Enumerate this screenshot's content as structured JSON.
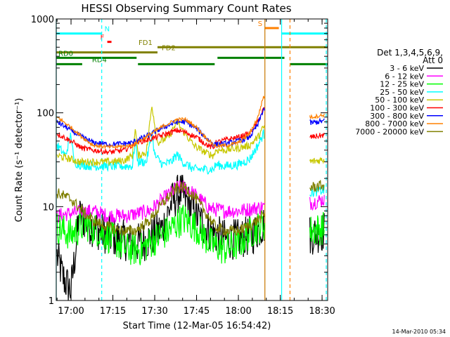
{
  "chart_data": {
    "type": "line",
    "title": "HESSI Observing Summary Count Rates",
    "xlabel": "Start Time (12-Mar-05 16:54:42)",
    "ylabel": "Count Rate (s⁻¹ detector⁻¹)",
    "y_scale": "log",
    "ylim": [
      1,
      1000
    ],
    "xlim": [
      "16:54:42",
      "18:32:00"
    ],
    "x_ticks": [
      "17:00",
      "17:15",
      "17:30",
      "17:45",
      "18:00",
      "18:15",
      "18:30"
    ],
    "y_ticks": [
      "1",
      "10",
      "100",
      "1000"
    ],
    "timestamp": "14-Mar-2010 05:34",
    "legend": {
      "placement": "right",
      "header": "Det 1,3,4,5,6,9,",
      "header2": "Att 0",
      "entries": [
        {
          "label": "3 - 6 keV",
          "color": "#000000"
        },
        {
          "label": "6 - 12 keV",
          "color": "#ff00ff"
        },
        {
          "label": "12 - 25 keV",
          "color": "#00ff00"
        },
        {
          "label": "25 - 50 keV",
          "color": "#00ffff"
        },
        {
          "label": "50 - 100 keV",
          "color": "#c8c800"
        },
        {
          "label": "100 - 300 keV",
          "color": "#ff0000"
        },
        {
          "label": "300 - 800 keV",
          "color": "#0000ff"
        },
        {
          "label": "800 - 7000 keV",
          "color": "#ff8000"
        },
        {
          "label": "7000 - 20000 keV",
          "color": "#808000"
        }
      ]
    },
    "flag_bars": [
      {
        "label": "N",
        "color": "#00ffff",
        "value": 700,
        "segments": [
          [
            "16:54:42",
            "17:11:00"
          ],
          [
            "18:15:30",
            "18:32:00"
          ]
        ]
      },
      {
        "label": "S",
        "color": "#ff8000",
        "value": 800,
        "segments": [
          [
            "18:09:30",
            "18:14:30"
          ]
        ]
      },
      {
        "label": "F",
        "color": "#ff0000",
        "value": 570,
        "segments": [
          [
            "17:13:00",
            "17:14:30"
          ]
        ]
      },
      {
        "label": "FD1",
        "color": "#808000",
        "value": 500,
        "segments": [
          [
            "17:31:00",
            "18:32:00"
          ]
        ]
      },
      {
        "label": "FD2",
        "color": "#808000",
        "value": 440,
        "segments": [
          [
            "16:54:42",
            "17:31:00"
          ]
        ]
      },
      {
        "label": "RD0",
        "color": "#008000",
        "value": 385,
        "segments": [
          [
            "16:54:42",
            "17:23:30"
          ],
          [
            "17:52:30",
            "18:16:30"
          ]
        ]
      },
      {
        "label": "RD4",
        "color": "#008000",
        "value": 330,
        "segments": [
          [
            "16:54:42",
            "17:04:00"
          ],
          [
            "17:24:00",
            "17:51:30"
          ],
          [
            "18:18:30",
            "18:32:00"
          ]
        ]
      }
    ],
    "vlines": [
      {
        "time": "16:54:42",
        "color": "#00ffff",
        "style": "solid"
      },
      {
        "time": "17:11:00",
        "color": "#00ffff",
        "style": "dashed"
      },
      {
        "time": "18:09:30",
        "color": "#c87800",
        "style": "solid"
      },
      {
        "time": "18:15:30",
        "color": "#00ffff",
        "style": "solid"
      },
      {
        "time": "18:18:30",
        "color": "#ff8000",
        "style": "dashed"
      },
      {
        "time": "18:31:30",
        "color": "#00ffff",
        "style": "dashed"
      }
    ],
    "series": [
      {
        "name": "3 - 6 keV",
        "color": "#000000",
        "noise": 0.22,
        "points": [
          [
            "16:55",
            3
          ],
          [
            "16:57",
            1.8
          ],
          [
            "16:59",
            1.4
          ],
          [
            "17:00",
            1.3
          ],
          [
            "17:03",
            8
          ],
          [
            "17:08",
            6
          ],
          [
            "17:13",
            5
          ],
          [
            "17:18",
            4.5
          ],
          [
            "17:23",
            4
          ],
          [
            "17:28",
            4.5
          ],
          [
            "17:33",
            6
          ],
          [
            "17:36",
            11
          ],
          [
            "17:39",
            14.5
          ],
          [
            "17:42",
            11
          ],
          [
            "17:45",
            8
          ],
          [
            "17:48",
            6
          ],
          [
            "17:52",
            5
          ],
          [
            "17:55",
            4.5
          ],
          [
            "18:00",
            4.5
          ],
          [
            "18:05",
            5
          ],
          [
            "18:09",
            6.5
          ],
          [
            "18:26",
            5
          ],
          [
            "18:31",
            5.5
          ]
        ],
        "gaps": [
          [
            "18:09:30",
            "18:25:30"
          ]
        ]
      },
      {
        "name": "6 - 12 keV",
        "color": "#ff00ff",
        "noise": 0.08,
        "points": [
          [
            "16:55",
            8
          ],
          [
            "17:00",
            8.5
          ],
          [
            "17:08",
            9
          ],
          [
            "17:13",
            8
          ],
          [
            "17:20",
            8
          ],
          [
            "17:28",
            9
          ],
          [
            "17:33",
            12
          ],
          [
            "17:38",
            16
          ],
          [
            "17:41",
            16
          ],
          [
            "17:45",
            13
          ],
          [
            "17:50",
            9.5
          ],
          [
            "17:55",
            9
          ],
          [
            "18:00",
            9
          ],
          [
            "18:05",
            9.5
          ],
          [
            "18:09",
            10
          ],
          [
            "18:26",
            11
          ],
          [
            "18:31",
            12
          ]
        ],
        "gaps": [
          [
            "18:09:30",
            "18:25:30"
          ]
        ]
      },
      {
        "name": "12 - 25 keV",
        "color": "#00ff00",
        "noise": 0.18,
        "points": [
          [
            "16:55",
            6
          ],
          [
            "17:00",
            5
          ],
          [
            "17:05",
            6.5
          ],
          [
            "17:10",
            5.5
          ],
          [
            "17:15",
            4.5
          ],
          [
            "17:20",
            3.5
          ],
          [
            "17:25",
            3.5
          ],
          [
            "17:30",
            4.5
          ],
          [
            "17:35",
            5.5
          ],
          [
            "17:40",
            7.5
          ],
          [
            "17:45",
            6
          ],
          [
            "17:50",
            4
          ],
          [
            "17:55",
            3.5
          ],
          [
            "18:00",
            4
          ],
          [
            "18:05",
            5.5
          ],
          [
            "18:09",
            6.5
          ],
          [
            "18:26",
            5.5
          ],
          [
            "18:31",
            6
          ]
        ],
        "gaps": [
          [
            "18:09:30",
            "18:25:30"
          ]
        ]
      },
      {
        "name": "25 - 50 keV",
        "color": "#00ffff",
        "noise": 0.05,
        "points": [
          [
            "16:55",
            45
          ],
          [
            "16:58",
            35
          ],
          [
            "17:00",
            60
          ],
          [
            "17:01",
            30
          ],
          [
            "17:03",
            28
          ],
          [
            "17:08",
            27
          ],
          [
            "17:14",
            27
          ],
          [
            "17:19",
            27
          ],
          [
            "17:22",
            27
          ],
          [
            "17:23",
            50
          ],
          [
            "17:24",
            30
          ],
          [
            "17:27",
            30
          ],
          [
            "17:29",
            60
          ],
          [
            "17:30",
            35
          ],
          [
            "17:33",
            28
          ],
          [
            "17:36",
            30
          ],
          [
            "17:38",
            36
          ],
          [
            "17:40",
            30
          ],
          [
            "17:44",
            25
          ],
          [
            "17:48",
            25
          ],
          [
            "17:51",
            25
          ],
          [
            "17:52",
            28
          ],
          [
            "17:55",
            27
          ],
          [
            "18:00",
            28
          ],
          [
            "18:04",
            32
          ],
          [
            "18:07",
            45
          ],
          [
            "18:09",
            60
          ],
          [
            "18:26",
            14
          ],
          [
            "18:31",
            15
          ]
        ],
        "gaps": [
          [
            "18:09:30",
            "18:25:30"
          ]
        ]
      },
      {
        "name": "50 - 100 keV",
        "color": "#c8c800",
        "noise": 0.04,
        "points": [
          [
            "16:55",
            35
          ],
          [
            "17:00",
            32
          ],
          [
            "17:03",
            30
          ],
          [
            "17:08",
            30
          ],
          [
            "17:14",
            30
          ],
          [
            "17:19",
            31
          ],
          [
            "17:22",
            35
          ],
          [
            "17:23",
            70
          ],
          [
            "17:24",
            35
          ],
          [
            "17:27",
            38
          ],
          [
            "17:29",
            120
          ],
          [
            "17:31",
            48
          ],
          [
            "17:35",
            55
          ],
          [
            "17:38",
            80
          ],
          [
            "17:40",
            65
          ],
          [
            "17:44",
            45
          ],
          [
            "17:48",
            38
          ],
          [
            "17:51",
            35
          ],
          [
            "17:52",
            40
          ],
          [
            "17:55",
            40
          ],
          [
            "18:00",
            42
          ],
          [
            "18:04",
            45
          ],
          [
            "18:07",
            55
          ],
          [
            "18:09",
            70
          ],
          [
            "18:26",
            30
          ],
          [
            "18:31",
            32
          ]
        ],
        "gaps": [
          [
            "18:09:30",
            "18:25:30"
          ]
        ]
      },
      {
        "name": "100 - 300 keV",
        "color": "#ff0000",
        "noise": 0.03,
        "points": [
          [
            "16:55",
            60
          ],
          [
            "17:00",
            50
          ],
          [
            "17:04",
            42
          ],
          [
            "17:08",
            40
          ],
          [
            "17:14",
            38
          ],
          [
            "17:19",
            40
          ],
          [
            "17:22",
            45
          ],
          [
            "17:23",
            48
          ],
          [
            "17:28",
            52
          ],
          [
            "17:33",
            58
          ],
          [
            "17:38",
            65
          ],
          [
            "17:41",
            62
          ],
          [
            "17:45",
            55
          ],
          [
            "17:49",
            45
          ],
          [
            "17:51",
            42
          ],
          [
            "17:52",
            48
          ],
          [
            "17:56",
            52
          ],
          [
            "18:00",
            55
          ],
          [
            "18:04",
            60
          ],
          [
            "18:07",
            80
          ],
          [
            "18:09",
            110
          ],
          [
            "18:26",
            55
          ],
          [
            "18:31",
            58
          ]
        ],
        "gaps": [
          [
            "18:09:30",
            "18:25:30"
          ]
        ]
      },
      {
        "name": "300 - 800 keV",
        "color": "#0000ff",
        "noise": 0.03,
        "points": [
          [
            "16:55",
            80
          ],
          [
            "17:00",
            65
          ],
          [
            "17:04",
            55
          ],
          [
            "17:08",
            48
          ],
          [
            "17:14",
            46
          ],
          [
            "17:19",
            47
          ],
          [
            "17:22",
            48
          ],
          [
            "17:23",
            50
          ],
          [
            "17:28",
            58
          ],
          [
            "17:33",
            70
          ],
          [
            "17:38",
            80
          ],
          [
            "17:41",
            80
          ],
          [
            "17:45",
            68
          ],
          [
            "17:49",
            52
          ],
          [
            "17:51",
            47
          ],
          [
            "17:52",
            46
          ],
          [
            "17:56",
            47
          ],
          [
            "18:00",
            50
          ],
          [
            "18:04",
            55
          ],
          [
            "18:07",
            75
          ],
          [
            "18:09",
            110
          ],
          [
            "18:26",
            78
          ],
          [
            "18:31",
            82
          ]
        ],
        "gaps": [
          [
            "18:09:30",
            "18:25:30"
          ]
        ]
      },
      {
        "name": "800 - 7000 keV",
        "color": "#ff8000",
        "noise": 0.02,
        "points": [
          [
            "16:55",
            90
          ],
          [
            "17:00",
            70
          ],
          [
            "17:04",
            55
          ],
          [
            "17:08",
            45
          ],
          [
            "17:14",
            43
          ],
          [
            "17:19",
            44
          ],
          [
            "17:22",
            45
          ],
          [
            "17:23",
            47
          ],
          [
            "17:28",
            58
          ],
          [
            "17:33",
            72
          ],
          [
            "17:38",
            85
          ],
          [
            "17:41",
            85
          ],
          [
            "17:45",
            70
          ],
          [
            "17:49",
            52
          ],
          [
            "17:51",
            46
          ],
          [
            "17:52",
            44
          ],
          [
            "17:56",
            45
          ],
          [
            "18:00",
            48
          ],
          [
            "18:04",
            60
          ],
          [
            "18:07",
            90
          ],
          [
            "18:09",
            150
          ],
          [
            "18:26",
            90
          ],
          [
            "18:31",
            95
          ]
        ],
        "gaps": [
          [
            "18:09:30",
            "18:25:30"
          ]
        ]
      },
      {
        "name": "7000 - 20000 keV",
        "color": "#808000",
        "noise": 0.06,
        "points": [
          [
            "16:55",
            14
          ],
          [
            "17:00",
            12
          ],
          [
            "17:04",
            9
          ],
          [
            "17:08",
            7
          ],
          [
            "17:14",
            6
          ],
          [
            "17:19",
            5.5
          ],
          [
            "17:23",
            5.5
          ],
          [
            "17:28",
            7
          ],
          [
            "17:33",
            11
          ],
          [
            "17:38",
            16
          ],
          [
            "17:41",
            16
          ],
          [
            "17:45",
            12
          ],
          [
            "17:49",
            8
          ],
          [
            "17:52",
            6
          ],
          [
            "17:56",
            5.5
          ],
          [
            "18:00",
            5.5
          ],
          [
            "18:05",
            6.5
          ],
          [
            "18:09",
            8
          ],
          [
            "18:26",
            16
          ],
          [
            "18:31",
            17
          ]
        ],
        "gaps": [
          [
            "18:09:30",
            "18:25:30"
          ]
        ]
      }
    ]
  }
}
